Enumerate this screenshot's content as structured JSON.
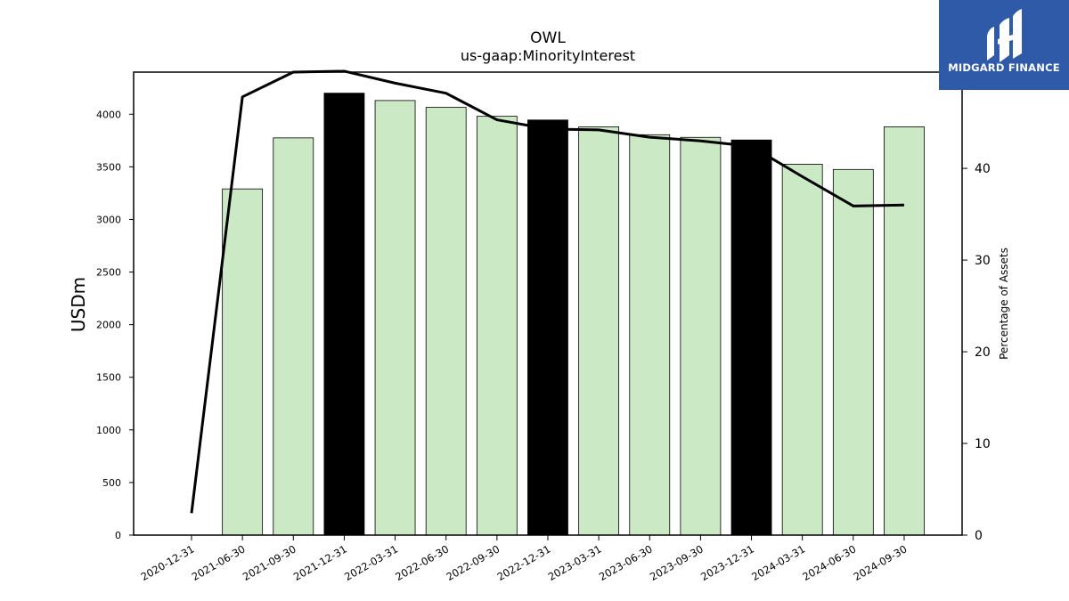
{
  "chart_data": {
    "type": "bar",
    "title": "OWL",
    "subtitle": "us-gaap:MinorityInterest",
    "ylabel": "USDm",
    "y2label": "Percentage of Assets",
    "ylim": [
      0,
      4400
    ],
    "y2lim": [
      0,
      50.5
    ],
    "yticks": [
      "0",
      "500",
      "1000",
      "1500",
      "2000",
      "2500",
      "3000",
      "3500",
      "4000"
    ],
    "y2ticks": [
      "0",
      "10",
      "20",
      "30",
      "40",
      "50"
    ],
    "categories": [
      "2020-12-31",
      "2021-06-30",
      "2021-09-30",
      "2021-12-31",
      "2022-03-31",
      "2022-06-30",
      "2022-09-30",
      "2022-12-31",
      "2023-03-31",
      "2023-06-30",
      "2023-09-30",
      "2023-12-31",
      "2024-03-31",
      "2024-06-30",
      "2024-09-30"
    ],
    "series": [
      {
        "kind": "bar",
        "axis": "left",
        "values": [
          null,
          3290,
          3775,
          4200,
          4130,
          4065,
          3980,
          3945,
          3880,
          3805,
          3780,
          3755,
          3525,
          3475,
          3880
        ],
        "highlight": [
          false,
          false,
          false,
          true,
          false,
          false,
          false,
          true,
          false,
          false,
          false,
          true,
          false,
          false,
          false
        ]
      },
      {
        "kind": "line",
        "axis": "right",
        "values": [
          2.4,
          47.8,
          50.5,
          50.6,
          49.3,
          48.2,
          45.3,
          44.3,
          44.2,
          43.4,
          43.0,
          42.4,
          39.1,
          35.9,
          36.0
        ]
      }
    ],
    "colors": {
      "bar": "#cce9c6",
      "bar_highlight": "#000000",
      "line": "#000000"
    },
    "grid": false
  },
  "logo": {
    "text": "MIDGARD FINANCE",
    "color": "#2f5aa8"
  }
}
